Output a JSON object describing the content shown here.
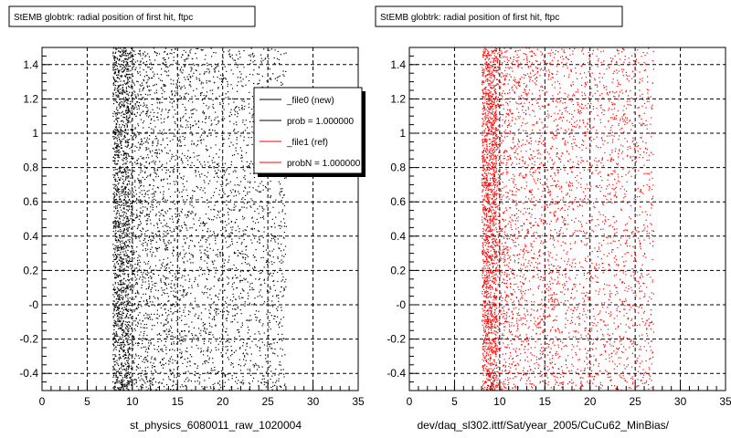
{
  "chart_data": [
    {
      "type": "scatter",
      "title": "StEMB globtrk: radial position of first hit, ftpc",
      "xlabel": "st_physics_6080011_raw_1020004",
      "ylabel": "",
      "xlim": [
        0,
        35
      ],
      "ylim": [
        -0.5,
        1.5
      ],
      "x_ticks": [
        "0",
        "5",
        "10",
        "15",
        "20",
        "25",
        "30",
        "35"
      ],
      "y_ticks": [
        "-0.4",
        "-0.2",
        "-0",
        "0.2",
        "0.4",
        "0.6",
        "0.8",
        "1",
        "1.2",
        "1.4"
      ],
      "grid": true,
      "marker_color": "#000000",
      "density_profile": {
        "x_start": 7.8,
        "dense_band": [
          7.8,
          9.5
        ],
        "peak_x": 8.3,
        "falloff_end": 27
      },
      "legend": {
        "placement": "top-right",
        "entries": [
          {
            "label": "_file0 (new)",
            "color": "#000000"
          },
          {
            "label": "prob = 1.000000",
            "color": "#000000"
          },
          {
            "label": "_file1 (ref)",
            "color": "#ff0000"
          },
          {
            "label": "probN = 1.000000",
            "color": "#ff0000"
          }
        ]
      }
    },
    {
      "type": "scatter",
      "title": "StEMB globtrk: radial position of first hit, ftpc",
      "xlabel": "dev/daq_sl302.ittf/Sat/year_2005/CuCu62_MinBias/",
      "ylabel": "",
      "xlim": [
        0,
        35
      ],
      "ylim": [
        -0.5,
        1.5
      ],
      "x_ticks": [
        "0",
        "5",
        "10",
        "15",
        "20",
        "25",
        "30",
        "35"
      ],
      "y_ticks": [
        "-0.4",
        "-0.2",
        "-0",
        "0.2",
        "0.4",
        "0.6",
        "0.8",
        "1",
        "1.2",
        "1.4"
      ],
      "grid": true,
      "marker_color": "#ff0000",
      "density_profile": {
        "x_start": 8.0,
        "dense_band": [
          8.0,
          9.5
        ],
        "peak_x": 8.5,
        "falloff_end": 27
      }
    }
  ]
}
